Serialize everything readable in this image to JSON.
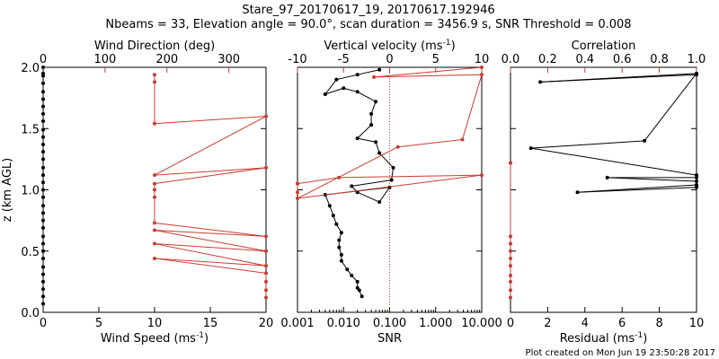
{
  "header": {
    "title": "Stare_97_20170617_19, 20170617.192946",
    "subtitle": "Nbeams = 33, Elevation angle = 90.0°, scan duration = 3456.9 s, SNR Threshold = 0.008"
  },
  "footer": {
    "created": "Plot created on Mon Jun 19 23:50:28 2017"
  },
  "colors": {
    "black": "#000000",
    "red": "#c83c32"
  },
  "chart_data": [
    {
      "type": "line",
      "name": "wind",
      "ylabel": "z (km AGL)",
      "ylim": [
        0.0,
        2.0
      ],
      "yticks": [
        "0.0",
        "0.5",
        "1.0",
        "1.5",
        "2.0"
      ],
      "bottom_axis": {
        "label": "Wind Speed (ms",
        "label_sup": "-1",
        "label_end": ")",
        "xlim": [
          0,
          20
        ],
        "ticks": [
          "0",
          "5",
          "10",
          "15",
          "20"
        ]
      },
      "top_axis": {
        "label": "Wind Direction (deg)",
        "xlim": [
          0,
          360
        ],
        "ticks": [
          "0",
          "100",
          "200",
          "300"
        ]
      },
      "series": [
        {
          "name": "Wind Speed",
          "color": "#000000",
          "x": [
            0,
            0,
            0,
            0,
            0,
            0,
            0,
            0,
            0,
            0,
            0,
            0,
            0,
            0,
            0,
            0,
            0,
            0,
            0,
            0,
            0,
            0,
            0,
            0,
            0,
            0,
            0,
            0,
            0,
            0,
            0,
            0,
            0
          ],
          "y": [
            0.07,
            0.13,
            0.19,
            0.25,
            0.31,
            0.37,
            0.44,
            0.5,
            0.56,
            0.62,
            0.69,
            0.75,
            0.81,
            0.87,
            0.94,
            1.0,
            1.06,
            1.12,
            1.18,
            1.25,
            1.31,
            1.37,
            1.43,
            1.49,
            1.56,
            1.62,
            1.68,
            1.74,
            1.8,
            1.87,
            1.93,
            1.95,
            2.0
          ]
        },
        {
          "name": "Wind Direction",
          "color": "#c83c32",
          "x": [
            360,
            360,
            360,
            360,
            180,
            360,
            180,
            360,
            180,
            360,
            180,
            180,
            180,
            180,
            360,
            180,
            360,
            180,
            180,
            180
          ],
          "y": [
            0.12,
            0.18,
            0.25,
            0.32,
            0.44,
            0.38,
            0.56,
            0.5,
            0.67,
            0.62,
            0.73,
            0.94,
            1.0,
            1.05,
            1.18,
            1.12,
            1.6,
            1.54,
            1.88,
            1.94
          ]
        }
      ]
    },
    {
      "type": "line",
      "name": "vertical_velocity_snr",
      "bottom_axis": {
        "label": "SNR",
        "scale": "log",
        "xlim": [
          0.001,
          10
        ],
        "ticks": [
          "0.001",
          "0.010",
          "0.100",
          "1.000",
          "10.000"
        ]
      },
      "top_axis": {
        "label": "Vertical velocity (ms",
        "label_sup": "-1",
        "label_end": ")",
        "xlim": [
          -10,
          10
        ],
        "ticks": [
          "-10",
          "-5",
          "0",
          "5",
          "10"
        ]
      },
      "zero_line_velocity": 0,
      "series": [
        {
          "name": "SNR",
          "color": "#000000",
          "x": [
            0.025,
            0.022,
            0.02,
            0.02,
            0.015,
            0.012,
            0.009,
            0.009,
            0.008,
            0.008,
            0.009,
            0.007,
            0.006,
            0.005,
            0.004,
            0.1,
            0.06,
            0.02,
            0.015,
            0.11,
            0.12,
            0.06,
            0.05,
            0.02,
            0.04,
            0.04,
            0.05,
            0.02,
            0.01,
            0.004,
            0.007,
            0.02,
            0.06
          ],
          "y": [
            0.13,
            0.18,
            0.2,
            0.25,
            0.3,
            0.35,
            0.42,
            0.47,
            0.53,
            0.59,
            0.65,
            0.72,
            0.79,
            0.87,
            0.96,
            1.02,
            0.9,
            0.98,
            1.03,
            1.08,
            1.18,
            1.3,
            1.39,
            1.42,
            1.53,
            1.62,
            1.72,
            1.8,
            1.83,
            1.78,
            1.9,
            1.94,
            1.98
          ]
        },
        {
          "name": "Vertical velocity",
          "color": "#c83c32",
          "x": [
            -10,
            -10,
            -10,
            -5.5,
            10,
            -10,
            0.9,
            7.9,
            10,
            -1.7,
            10
          ],
          "y": [
            0.98,
            1.05,
            1.05,
            1.1,
            1.12,
            0.93,
            1.35,
            1.41,
            1.94,
            1.92,
            2.0
          ]
        }
      ]
    },
    {
      "type": "line",
      "name": "residual_correlation",
      "bottom_axis": {
        "label": "Residual (ms",
        "label_sup": "-1",
        "label_end": ")",
        "xlim": [
          0,
          10
        ],
        "ticks": [
          "0",
          "2",
          "4",
          "6",
          "8",
          "10"
        ]
      },
      "top_axis": {
        "label": "Correlation",
        "xlim": [
          0.0,
          1.0
        ],
        "ticks": [
          "0.0",
          "0.2",
          "0.4",
          "0.6",
          "0.8",
          "1.0"
        ]
      },
      "series": [
        {
          "name": "Residual",
          "color": "#000000",
          "x": [
            10,
            3.6,
            10,
            10,
            5.2,
            10,
            10,
            1.1,
            7.2,
            10,
            1.6,
            10
          ],
          "y": [
            1.04,
            0.98,
            1.02,
            1.07,
            1.1,
            1.1,
            1.12,
            1.34,
            1.4,
            1.95,
            1.88,
            1.94
          ]
        },
        {
          "name": "Correlation",
          "color": "#c83c32",
          "x": [
            0,
            0,
            0,
            0,
            0,
            0,
            0,
            0,
            0,
            0,
            0
          ],
          "y": [
            0.12,
            0.18,
            0.25,
            0.3,
            0.38,
            0.44,
            0.5,
            0.56,
            0.62,
            1.22,
            1.22
          ]
        }
      ]
    }
  ]
}
